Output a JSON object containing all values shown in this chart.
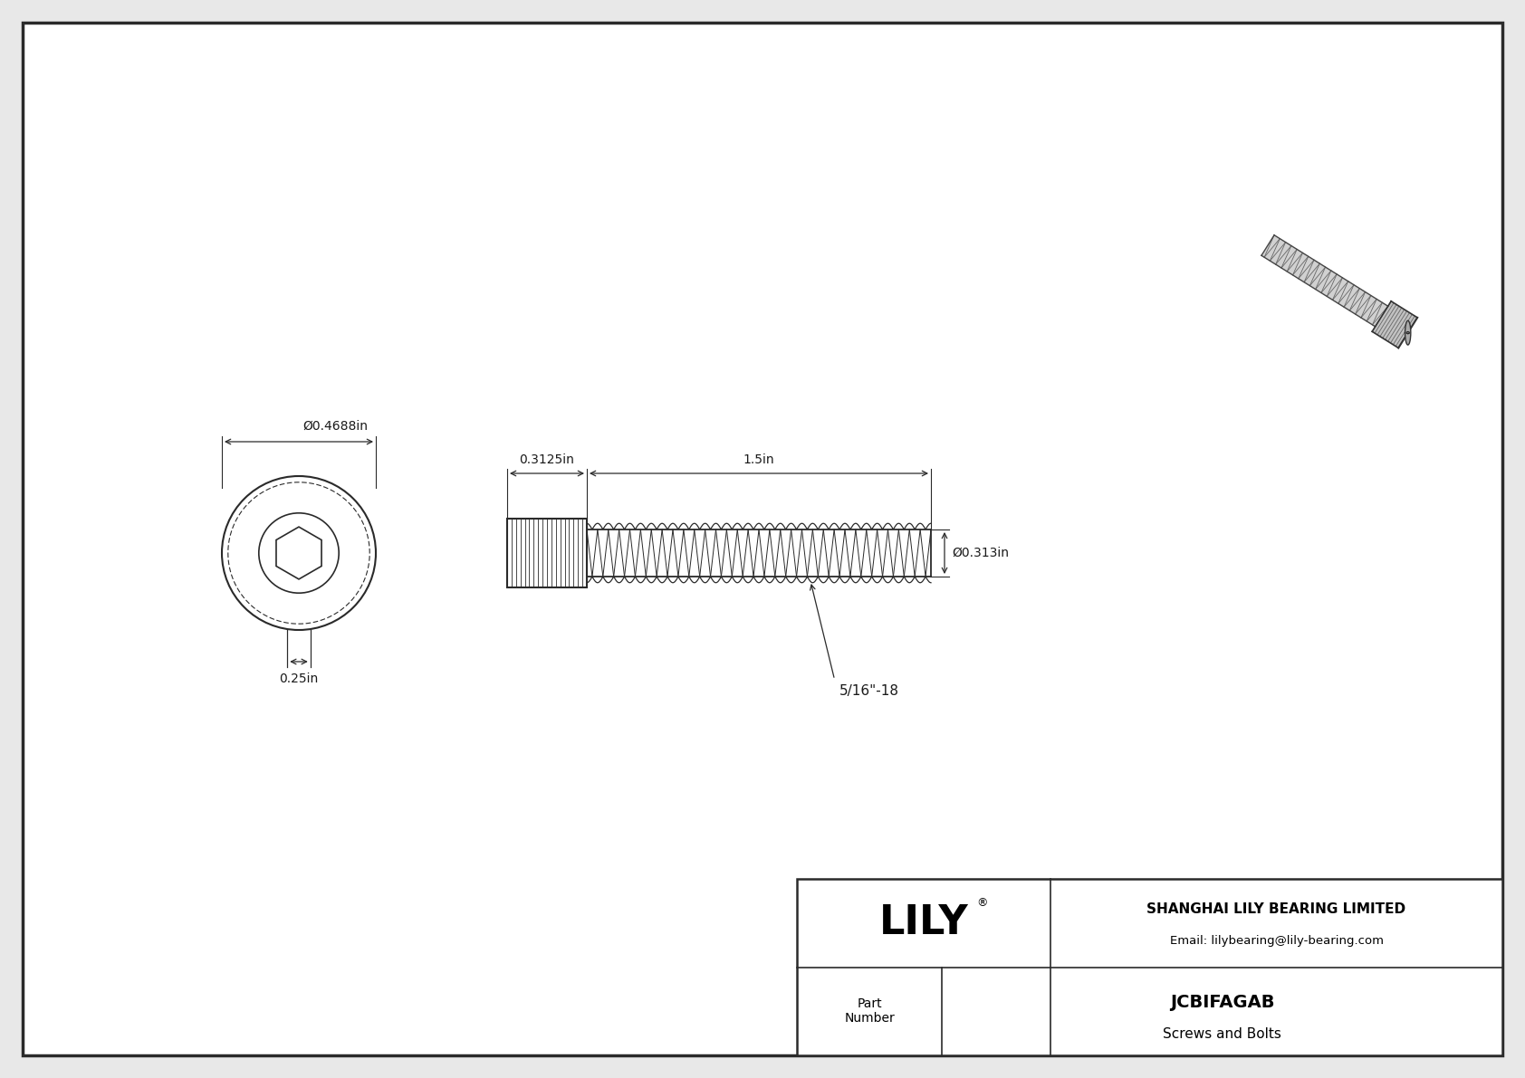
{
  "bg_color": "#e8e8e8",
  "drawing_bg": "#ffffff",
  "border_color": "#2a2a2a",
  "line_color": "#2a2a2a",
  "dim_color": "#2a2a2a",
  "text_color": "#1a1a1a",
  "title": "JCBIFAGAB",
  "subtitle": "Screws and Bolts",
  "company": "SHANGHAI LILY BEARING LIMITED",
  "email": "Email: lilybearing@lily-bearing.com",
  "part_label": "Part\nNumber",
  "logo_text": "LILY",
  "dim_head_diameter": "Ø0.4688in",
  "dim_head_height": "0.25in",
  "dim_thread_length": "1.5in",
  "dim_head_width": "0.3125in",
  "dim_shank_diameter": "Ø0.313in",
  "dim_thread_label": "5/16\"-18",
  "font_size_dim": 10,
  "font_size_label": 10,
  "font_size_logo": 32,
  "font_size_company": 11,
  "font_size_part": 14
}
